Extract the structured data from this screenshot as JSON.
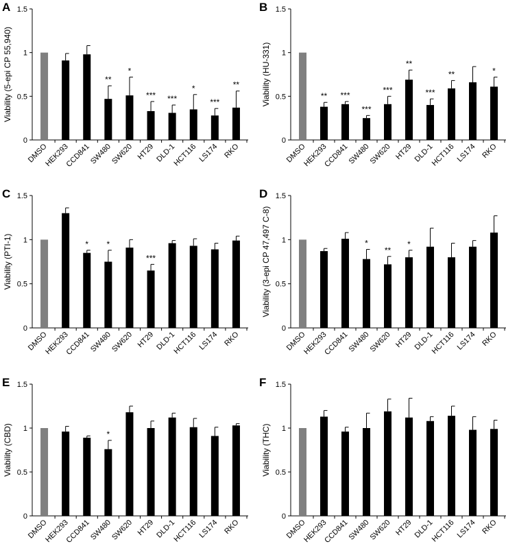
{
  "chart_data": [
    {
      "panel": "A",
      "type": "bar",
      "ylabel": "Viability (5-epi CP 55,940)",
      "ylim": [
        0,
        1.5
      ],
      "yticks": [
        "0",
        "0.5",
        "1",
        "1.5"
      ],
      "categories": [
        "DMSO",
        "HEK293",
        "CCD841",
        "SW480",
        "SW620",
        "HT29",
        "DLD-1",
        "HCT116",
        "LS174",
        "RKO"
      ],
      "values": [
        1.0,
        0.91,
        0.98,
        0.47,
        0.51,
        0.33,
        0.31,
        0.35,
        0.28,
        0.37
      ],
      "errors": [
        0.0,
        0.08,
        0.1,
        0.15,
        0.21,
        0.11,
        0.09,
        0.17,
        0.08,
        0.19
      ],
      "significance": [
        "",
        "",
        "",
        "**",
        "*",
        "***",
        "***",
        "*",
        "***",
        "**"
      ],
      "bar_colors": [
        "#808080",
        "#000000",
        "#000000",
        "#000000",
        "#000000",
        "#000000",
        "#000000",
        "#000000",
        "#000000",
        "#000000"
      ]
    },
    {
      "panel": "B",
      "type": "bar",
      "ylabel": "Viability (HU-331)",
      "ylim": [
        0,
        1.5
      ],
      "yticks": [
        "0",
        "0.5",
        "1",
        "1.5"
      ],
      "categories": [
        "DMSO",
        "HEK293",
        "CCD841",
        "SW480",
        "SW620",
        "HT29",
        "DLD-1",
        "HCT116",
        "LS174",
        "RKO"
      ],
      "values": [
        1.0,
        0.38,
        0.41,
        0.25,
        0.41,
        0.69,
        0.4,
        0.59,
        0.66,
        0.61
      ],
      "errors": [
        0.0,
        0.05,
        0.03,
        0.03,
        0.09,
        0.11,
        0.07,
        0.09,
        0.18,
        0.11
      ],
      "significance": [
        "",
        "**",
        "***",
        "***",
        "***",
        "**",
        "***",
        "**",
        "",
        "*"
      ],
      "bar_colors": [
        "#808080",
        "#000000",
        "#000000",
        "#000000",
        "#000000",
        "#000000",
        "#000000",
        "#000000",
        "#000000",
        "#000000"
      ]
    },
    {
      "panel": "C",
      "type": "bar",
      "ylabel": "Viability (PTI-1)",
      "ylim": [
        0,
        1.5
      ],
      "yticks": [
        "0",
        "0.5",
        "1",
        "1.5"
      ],
      "categories": [
        "DMSO",
        "HEK293",
        "CCD841",
        "SW480",
        "SW620",
        "HT29",
        "DLD-1",
        "HCT116",
        "LS174",
        "RKO"
      ],
      "values": [
        1.0,
        1.3,
        0.85,
        0.75,
        0.91,
        0.65,
        0.96,
        0.93,
        0.89,
        0.99
      ],
      "errors": [
        0.0,
        0.06,
        0.03,
        0.13,
        0.09,
        0.07,
        0.03,
        0.08,
        0.07,
        0.05
      ],
      "significance": [
        "",
        "",
        "*",
        "*",
        "",
        "***",
        "",
        "",
        "",
        ""
      ],
      "bar_colors": [
        "#808080",
        "#000000",
        "#000000",
        "#000000",
        "#000000",
        "#000000",
        "#000000",
        "#000000",
        "#000000",
        "#000000"
      ]
    },
    {
      "panel": "D",
      "type": "bar",
      "ylabel": "Viability (3-epi CP 47,497 C-8)",
      "ylim": [
        0,
        1.5
      ],
      "yticks": [
        "0",
        "0.5",
        "1",
        "1.5"
      ],
      "categories": [
        "DMSO",
        "HEK293",
        "CCD841",
        "SW480",
        "SW620",
        "HT29",
        "DLD-1",
        "HCT116",
        "LS174",
        "RKO"
      ],
      "values": [
        1.0,
        0.87,
        1.01,
        0.78,
        0.72,
        0.8,
        0.92,
        0.8,
        0.92,
        1.08
      ],
      "errors": [
        0.0,
        0.03,
        0.07,
        0.11,
        0.09,
        0.08,
        0.21,
        0.16,
        0.07,
        0.19
      ],
      "significance": [
        "",
        "",
        "",
        "*",
        "**",
        "*",
        "",
        "",
        "",
        ""
      ],
      "bar_colors": [
        "#808080",
        "#000000",
        "#000000",
        "#000000",
        "#000000",
        "#000000",
        "#000000",
        "#000000",
        "#000000",
        "#000000"
      ]
    },
    {
      "panel": "E",
      "type": "bar",
      "ylabel": "Viability (CBD)",
      "ylim": [
        0,
        1.5
      ],
      "yticks": [
        "0",
        "0.5",
        "1",
        "1.5"
      ],
      "categories": [
        "DMSO",
        "HEK293",
        "CCD841",
        "SW480",
        "SW620",
        "HT29",
        "DLD-1",
        "HCT116",
        "LS174",
        "RKO"
      ],
      "values": [
        1.0,
        0.96,
        0.89,
        0.76,
        1.18,
        1.0,
        1.12,
        1.01,
        0.91,
        1.03
      ],
      "errors": [
        0.0,
        0.06,
        0.02,
        0.1,
        0.07,
        0.08,
        0.05,
        0.1,
        0.1,
        0.02
      ],
      "significance": [
        "",
        "",
        "",
        "*",
        "",
        "",
        "",
        "",
        "",
        ""
      ],
      "bar_colors": [
        "#808080",
        "#000000",
        "#000000",
        "#000000",
        "#000000",
        "#000000",
        "#000000",
        "#000000",
        "#000000",
        "#000000"
      ]
    },
    {
      "panel": "F",
      "type": "bar",
      "ylabel": "Viability (THC)",
      "ylim": [
        0,
        1.5
      ],
      "yticks": [
        "0",
        "0.5",
        "1",
        "1.5"
      ],
      "categories": [
        "DMSO",
        "HEK293",
        "CCD841",
        "SW480",
        "SW620",
        "HT29",
        "DLD-1",
        "HCT116",
        "LS174",
        "RKO"
      ],
      "values": [
        1.0,
        1.13,
        0.96,
        1.0,
        1.19,
        1.12,
        1.08,
        1.14,
        0.98,
        0.99
      ],
      "errors": [
        0.0,
        0.07,
        0.05,
        0.17,
        0.14,
        0.22,
        0.05,
        0.11,
        0.15,
        0.1
      ],
      "significance": [
        "",
        "",
        "",
        "",
        "",
        "",
        "",
        "",
        "",
        ""
      ],
      "bar_colors": [
        "#808080",
        "#000000",
        "#000000",
        "#000000",
        "#000000",
        "#000000",
        "#000000",
        "#000000",
        "#000000",
        "#000000"
      ]
    }
  ]
}
